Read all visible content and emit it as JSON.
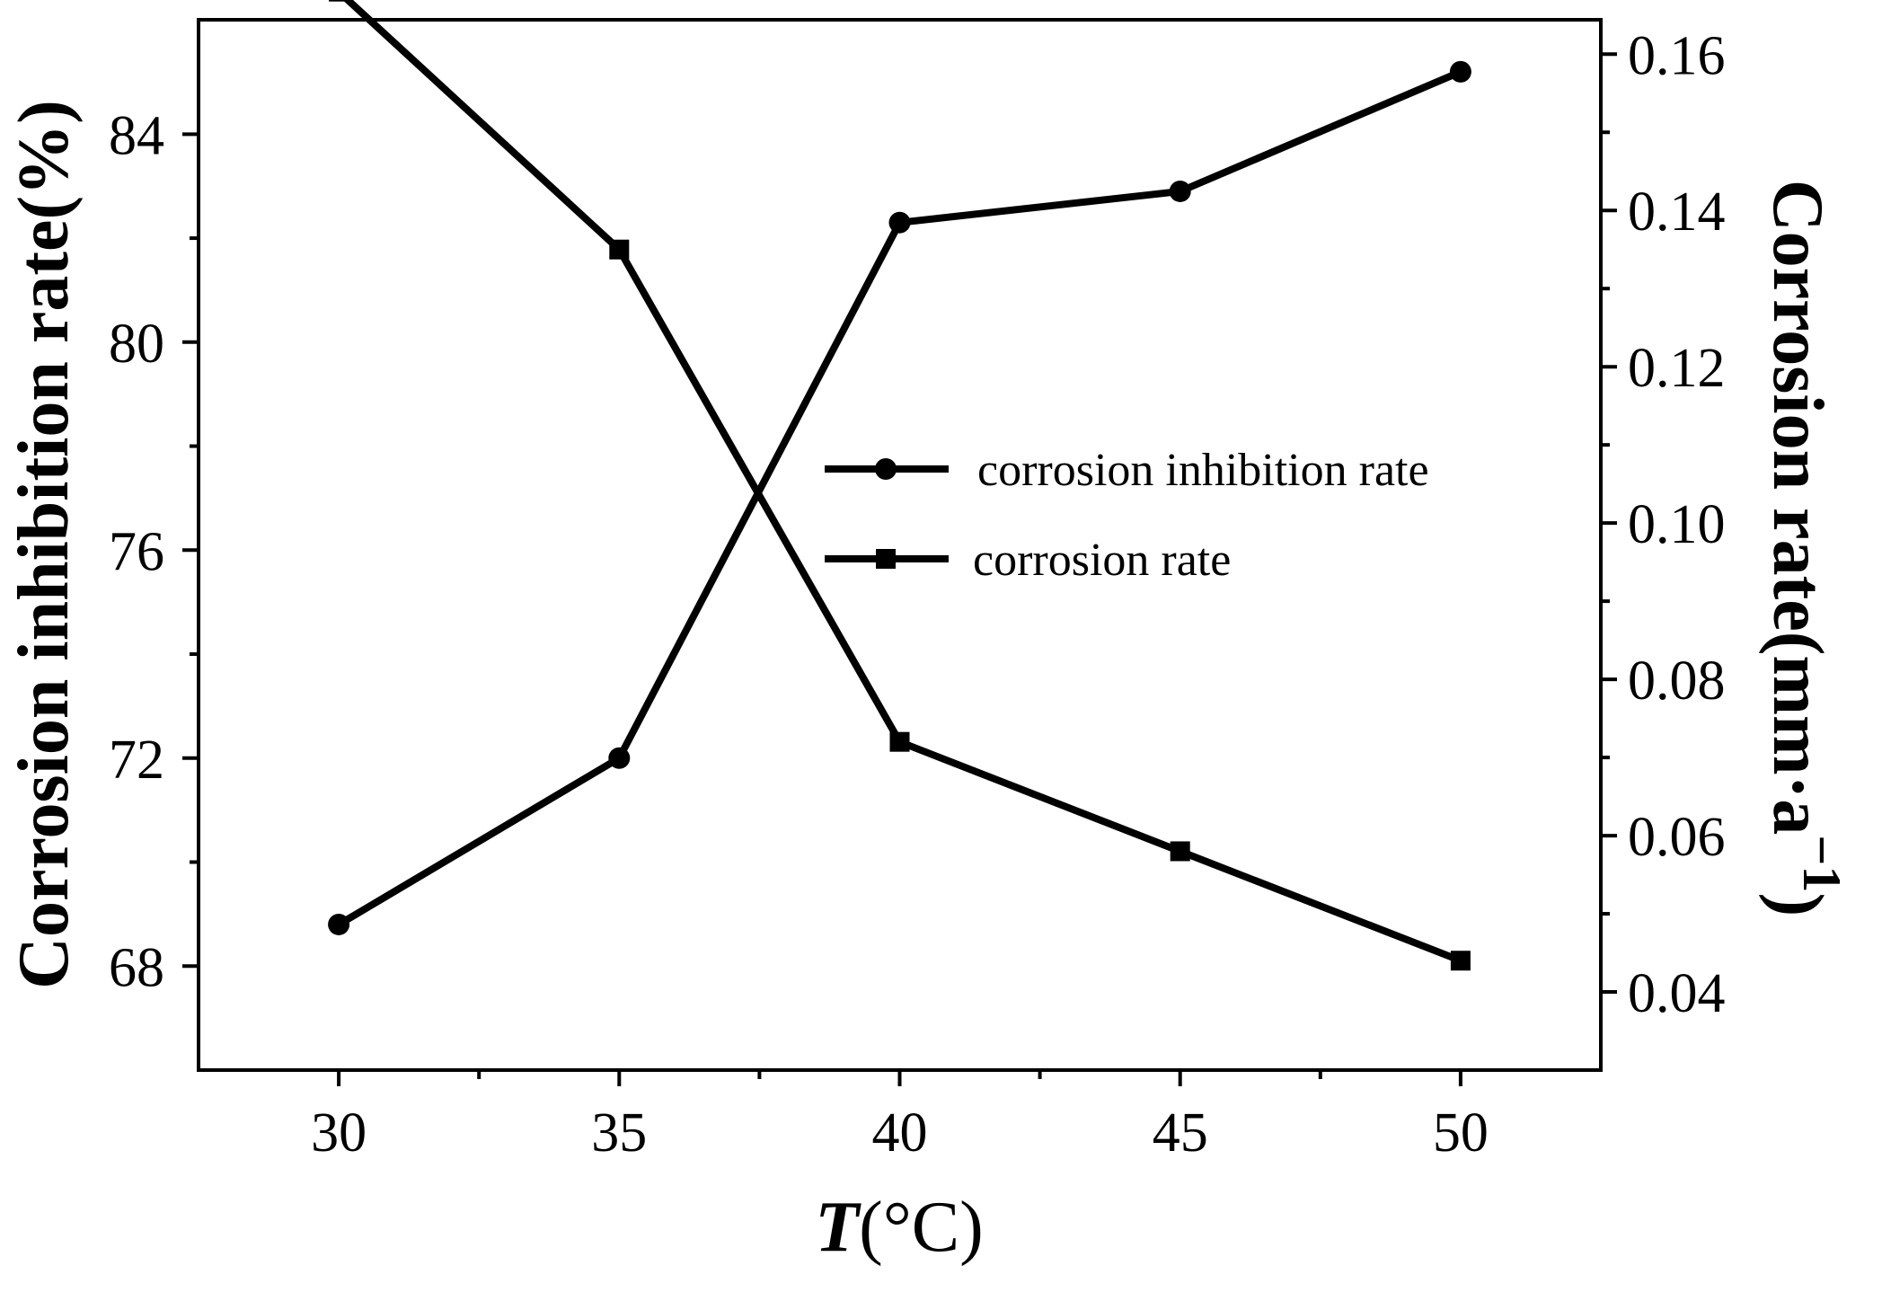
{
  "chart_data": {
    "type": "line",
    "x": [
      30,
      35,
      40,
      45,
      50
    ],
    "series": [
      {
        "name": "corrosion inhibition rate",
        "axis": "left",
        "marker": "circle",
        "values": [
          68.8,
          72.0,
          82.3,
          82.9,
          85.2
        ]
      },
      {
        "name": "corrosion rate",
        "axis": "right",
        "marker": "square",
        "values": [
          0.168,
          0.135,
          0.072,
          0.058,
          0.044
        ]
      }
    ],
    "xlabel": {
      "italic": "T",
      "rest": "(°C)"
    },
    "ylabel_left": "Corrosion inhibition rate(%)",
    "ylabel_right": {
      "main": "Corrosion rate(mm·a",
      "sup": "−1",
      "close": ")"
    },
    "xlim": [
      27.5,
      52.5
    ],
    "ylim_left": [
      66,
      86.2
    ],
    "ylim_right": [
      0.03,
      0.1644
    ],
    "xticks": [
      30,
      35,
      40,
      45,
      50
    ],
    "xticks_minor": [
      32.5,
      37.5,
      42.5,
      47.5
    ],
    "yticks_left": [
      68,
      72,
      76,
      80,
      84
    ],
    "yticks_left_minor": [
      70,
      74,
      78,
      82
    ],
    "yticks_right": [
      0.04,
      0.06,
      0.08,
      0.1,
      0.12,
      0.14,
      0.16
    ],
    "yticks_right_labels": [
      "0.04",
      "0.06",
      "0.08",
      "0.10",
      "0.12",
      "0.14",
      "0.16"
    ],
    "yticks_right_minor": [
      0.05,
      0.07,
      0.09,
      0.11,
      0.13,
      0.15
    ],
    "legend_position": "center-right",
    "grid": false,
    "line_color": "#000000"
  }
}
